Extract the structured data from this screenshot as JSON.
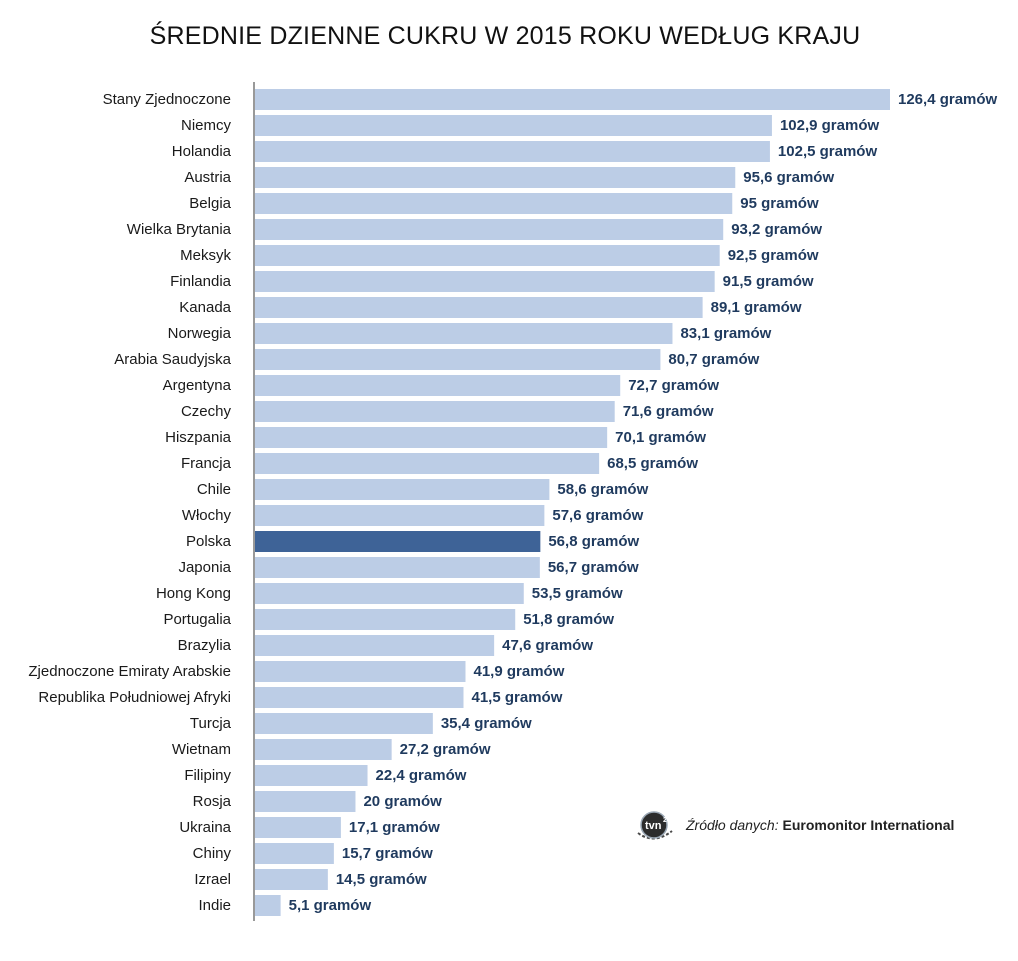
{
  "chart_data": {
    "type": "bar",
    "orientation": "horizontal",
    "title": "ŚREDNIE DZIENNE CUKRU W 2015 ROKU WEDŁUG KRAJU",
    "xlabel": "",
    "ylabel": "",
    "unit_suffix": "gramów",
    "xlim": [
      0,
      126.4
    ],
    "grid": false,
    "categories": [
      "Stany Zjednoczone",
      "Niemcy",
      "Holandia",
      "Austria",
      "Belgia",
      "Wielka Brytania",
      "Meksyk",
      "Finlandia",
      "Kanada",
      "Norwegia",
      "Arabia Saudyjska",
      "Argentyna",
      "Czechy",
      "Hiszpania",
      "Francja",
      "Chile",
      "Włochy",
      "Polska",
      "Japonia",
      "Hong Kong",
      "Portugalia",
      "Brazylia",
      "Zjednoczone Emiraty Arabskie",
      "Republika Południowej Afryki",
      "Turcja",
      "Wietnam",
      "Filipiny",
      "Rosja",
      "Ukraina",
      "Chiny",
      "Izrael",
      "Indie"
    ],
    "values": [
      126.4,
      102.9,
      102.5,
      95.6,
      95,
      93.2,
      92.5,
      91.5,
      89.1,
      83.1,
      80.7,
      72.7,
      71.6,
      70.1,
      68.5,
      58.6,
      57.6,
      56.8,
      56.7,
      53.5,
      51.8,
      47.6,
      41.9,
      41.5,
      35.4,
      27.2,
      22.4,
      20,
      17.1,
      15.7,
      14.5,
      5.1
    ],
    "value_labels": [
      "126,4 gramów",
      "102,9 gramów",
      "102,5 gramów",
      "95,6 gramów",
      "95 gramów",
      "93,2 gramów",
      "92,5 gramów",
      "91,5 gramów",
      "89,1 gramów",
      "83,1 gramów",
      "80,7 gramów",
      "72,7 gramów",
      "71,6 gramów",
      "70,1 gramów",
      "68,5 gramów",
      "58,6 gramów",
      "57,6 gramów",
      "56,8 gramów",
      "56,7 gramów",
      "53,5 gramów",
      "51,8 gramów",
      "47,6 gramów",
      "41,9 gramów",
      "41,5 gramów",
      "35,4 gramów",
      "27,2 gramów",
      "22,4 gramów",
      "20 gramów",
      "17,1 gramów",
      "15,7 gramów",
      "14,5 gramów",
      "5,1 gramów"
    ],
    "highlight_category": "Polska",
    "colors": {
      "bar": "#bccde6",
      "highlight": "#3e6397",
      "value_text": "#1f3a5e",
      "axis": "#333333"
    }
  },
  "source": {
    "prefix": "Źródło danych:",
    "name": "Euromonitor International",
    "logo_icon": "tvn24-logo-icon"
  }
}
